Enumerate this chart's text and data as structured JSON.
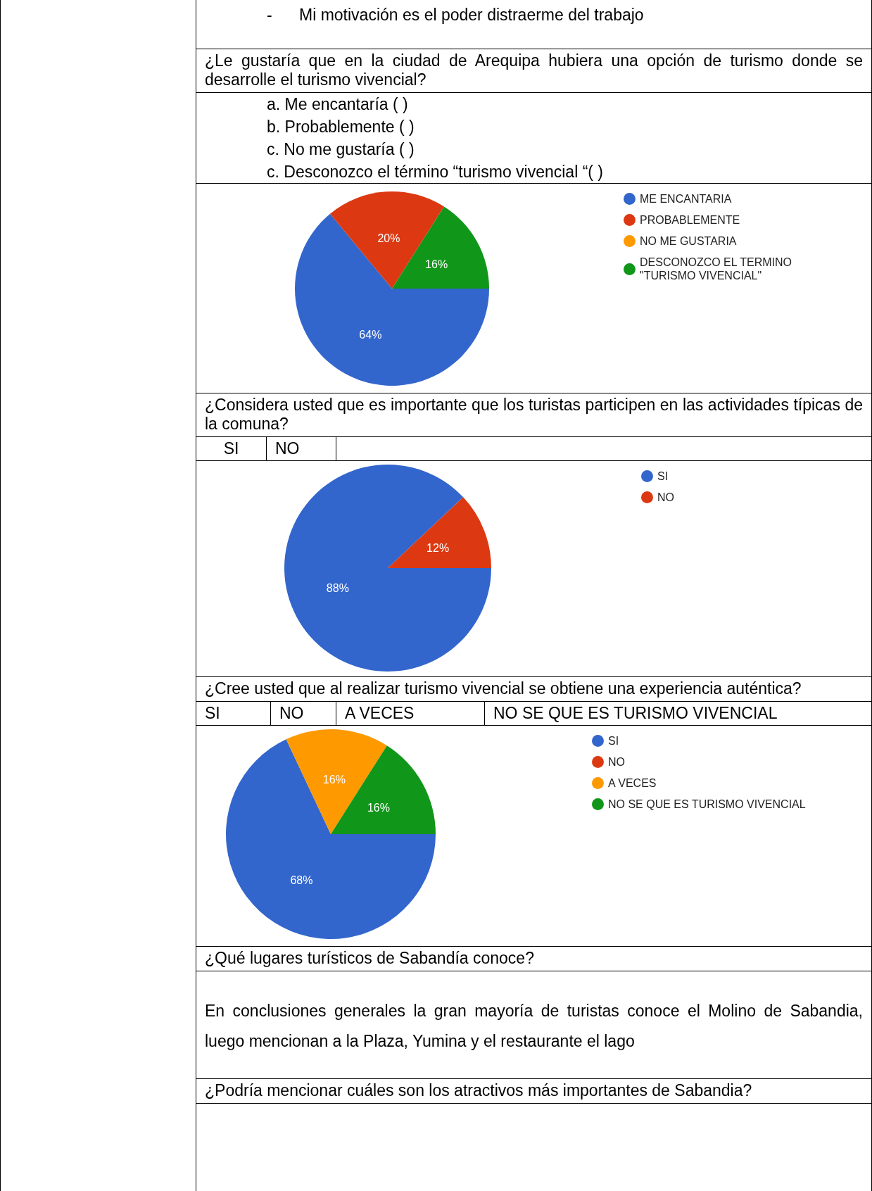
{
  "chart_data": [
    {
      "type": "other",
      "annotations": [
        "-      Mi motivación es el poder distraerme del trabajo"
      ]
    },
    {
      "type": "pie",
      "title": "¿Le gustaría que en la ciudad de Arequipa hubiera una opción de turismo donde se desarrolle el turismo vivencial?",
      "annotations": [
        "a. Me encantaría (  )",
        "b. Probablemente (  )",
        "c. No me gustaría (  )",
        "c. Desconozco el término “turismo vivencial “(  )"
      ],
      "categories": [
        "ME ENCANTARIA",
        "PROBABLEMENTE",
        "NO ME GUSTARIA",
        "DESCONOZCO EL TERMINO \"TURISMO VIVENCIAL\""
      ],
      "values": [
        64,
        20,
        0,
        16
      ],
      "colors": [
        "#3366cc",
        "#dc3912",
        "#ff9900",
        "#109618"
      ],
      "value_labels": [
        "64%",
        "20%",
        null,
        "16%"
      ],
      "legend": "top right"
    },
    {
      "type": "pie",
      "title": "¿Considera usted que es importante que los turistas participen en las actividades típicas de la comuna?",
      "annotations": [
        "SI",
        "NO"
      ],
      "categories": [
        "SI",
        "NO"
      ],
      "values": [
        88,
        12
      ],
      "colors": [
        "#3366cc",
        "#dc3912"
      ],
      "value_labels": [
        "88%",
        "12%"
      ],
      "legend": "top right"
    },
    {
      "type": "pie",
      "title": "¿Cree usted que al realizar turismo vivencial se obtiene una experiencia auténtica?",
      "annotations": [
        "SI",
        "NO",
        "A VECES",
        "NO SE QUE ES TURISMO VIVENCIAL"
      ],
      "categories": [
        "SI",
        "NO",
        "A VECES",
        "NO SE QUE ES TURISMO VIVENCIAL"
      ],
      "values": [
        68,
        0,
        16,
        16
      ],
      "colors": [
        "#3366cc",
        "#dc3912",
        "#ff9900",
        "#109618"
      ],
      "value_labels": [
        "68%",
        null,
        "16%",
        "16%"
      ],
      "legend": "top right"
    },
    {
      "type": "other",
      "title": "¿Qué lugares turísticos de Sabandía conoce?",
      "annotations": [
        "En conclusiones generales la gran mayoría de turistas conoce el Molino de Sabandia, luego mencionan a la Plaza, Yumina y el restaurante el lago"
      ]
    },
    {
      "type": "other",
      "title": "¿Podría mencionar cuáles son los atractivos más importantes de Sabandia?"
    }
  ]
}
